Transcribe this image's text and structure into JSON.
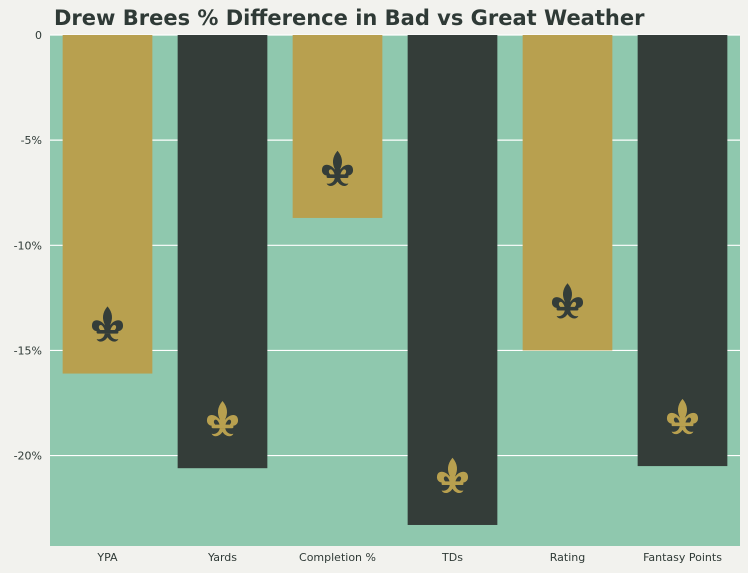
{
  "colors": {
    "background": "#f2f2ee",
    "plot_background": "#8fc8ae",
    "gold": "#b8a04f",
    "black": "#343d39",
    "grid": "#ffffff",
    "text": "#2f3a36"
  },
  "icons": {
    "bar_emblem": "fleur-de-lis-icon"
  },
  "chart_data": {
    "type": "bar",
    "title": "Drew Brees % Difference in Bad vs Great Weather",
    "xlabel": "",
    "ylabel": "",
    "ylim": [
      -24.3,
      0
    ],
    "yticks": [
      0,
      -5,
      -10,
      -15,
      -20
    ],
    "ytick_labels": [
      "0",
      "-5%",
      "-10%",
      "-15%",
      "-20%"
    ],
    "grid": "horizontal",
    "categories": [
      "YPA",
      "Yards",
      "Completion %",
      "TDs",
      "Rating",
      "Fantasy Points"
    ],
    "values": [
      -16.1,
      -20.6,
      -8.7,
      -23.3,
      -15.0,
      -20.5
    ],
    "bar_colors": [
      "gold",
      "black",
      "gold",
      "black",
      "gold",
      "black"
    ],
    "emblem_colors": [
      "black",
      "gold",
      "black",
      "gold",
      "black",
      "gold"
    ]
  }
}
